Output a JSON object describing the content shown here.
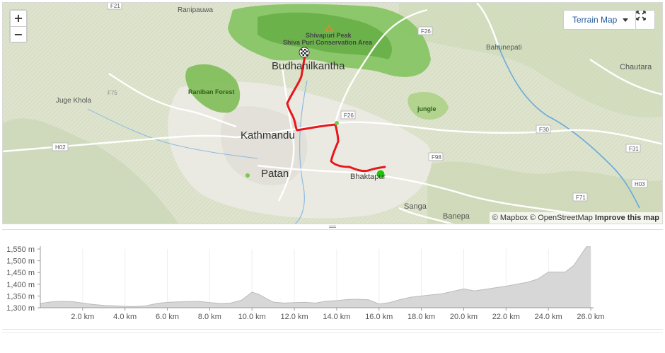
{
  "map": {
    "controls": {
      "zoom_in": "+",
      "zoom_out": "−",
      "layer_label": "Terrain Map",
      "fullscreen_icon": "fullscreen-icon"
    },
    "places": [
      {
        "id": "ranipauwa",
        "label": "Ranipauwa"
      },
      {
        "id": "shivapuri",
        "label": "Shivapuri Peak"
      },
      {
        "id": "conservation",
        "label": "Shiva Puri Conservation Area"
      },
      {
        "id": "budhanilkantha",
        "label": "Budhanilkantha"
      },
      {
        "id": "baluwapati",
        "label": "Bahunepati"
      },
      {
        "id": "chautara",
        "label": "Chautara"
      },
      {
        "id": "juge",
        "label": "Juge Khola"
      },
      {
        "id": "raniban",
        "label": "Raniban Forest"
      },
      {
        "id": "kathmandu",
        "label": "Kathmandu"
      },
      {
        "id": "jungle",
        "label": "jungle"
      },
      {
        "id": "patan",
        "label": "Patan"
      },
      {
        "id": "bhaktapur",
        "label": "Bhaktapur"
      },
      {
        "id": "sanga",
        "label": "Sanga"
      },
      {
        "id": "banepa",
        "label": "Banepa"
      }
    ],
    "roads": [
      {
        "id": "f21",
        "label": "F21"
      },
      {
        "id": "f26a",
        "label": "F26"
      },
      {
        "id": "f75",
        "label": "F75"
      },
      {
        "id": "f26b",
        "label": "F26"
      },
      {
        "id": "f30",
        "label": "F30"
      },
      {
        "id": "h02",
        "label": "H02"
      },
      {
        "id": "f98",
        "label": "F98"
      },
      {
        "id": "f31",
        "label": "F31"
      },
      {
        "id": "h03",
        "label": "H03"
      },
      {
        "id": "f71",
        "label": "F71"
      }
    ],
    "route_color": "#e8161b",
    "start_color": "#21c40a",
    "attribution": {
      "mapbox": "© Mapbox",
      "osm": "© OpenStreetMap",
      "improve": "Improve this map"
    }
  },
  "elevation": {
    "y_ticks": [
      "1,300 m",
      "1,350 m",
      "1,400 m",
      "1,450 m",
      "1,500 m",
      "1,550 m"
    ],
    "x_ticks": [
      "2.0 km",
      "4.0 km",
      "6.0 km",
      "8.0 km",
      "10.0 km",
      "12.0 km",
      "14.0 km",
      "16.0 km",
      "18.0 km",
      "20.0 km",
      "22.0 km",
      "24.0 km",
      "26.0 km"
    ],
    "fill_color": "#d7d7d7",
    "line_color": "#bbbbbb",
    "profile": [
      [
        0,
        1318
      ],
      [
        0.5,
        1325
      ],
      [
        1.0,
        1327
      ],
      [
        1.5,
        1326
      ],
      [
        2.0,
        1320
      ],
      [
        2.5,
        1314
      ],
      [
        3.0,
        1310
      ],
      [
        3.5,
        1308
      ],
      [
        4.0,
        1306
      ],
      [
        4.5,
        1305
      ],
      [
        5.0,
        1308
      ],
      [
        5.5,
        1318
      ],
      [
        6.0,
        1323
      ],
      [
        6.5,
        1325
      ],
      [
        7.0,
        1326
      ],
      [
        7.5,
        1327
      ],
      [
        8.0,
        1322
      ],
      [
        8.5,
        1318
      ],
      [
        9.0,
        1320
      ],
      [
        9.5,
        1332
      ],
      [
        10.0,
        1366
      ],
      [
        10.3,
        1358
      ],
      [
        10.7,
        1338
      ],
      [
        11.0,
        1324
      ],
      [
        11.5,
        1320
      ],
      [
        12.0,
        1322
      ],
      [
        12.5,
        1323
      ],
      [
        13.0,
        1320
      ],
      [
        13.5,
        1328
      ],
      [
        14.0,
        1330
      ],
      [
        14.5,
        1335
      ],
      [
        15.0,
        1336
      ],
      [
        15.5,
        1334
      ],
      [
        16.0,
        1316
      ],
      [
        16.5,
        1322
      ],
      [
        17.0,
        1335
      ],
      [
        17.5,
        1345
      ],
      [
        18.0,
        1350
      ],
      [
        18.5,
        1355
      ],
      [
        19.0,
        1360
      ],
      [
        19.5,
        1370
      ],
      [
        20.0,
        1380
      ],
      [
        20.5,
        1372
      ],
      [
        21.0,
        1378
      ],
      [
        21.5,
        1385
      ],
      [
        22.0,
        1392
      ],
      [
        22.5,
        1400
      ],
      [
        23.0,
        1408
      ],
      [
        23.5,
        1422
      ],
      [
        24.0,
        1452
      ],
      [
        24.8,
        1452
      ],
      [
        25.2,
        1480
      ],
      [
        25.5,
        1520
      ],
      [
        25.8,
        1560
      ],
      [
        26.0,
        1560
      ]
    ]
  }
}
